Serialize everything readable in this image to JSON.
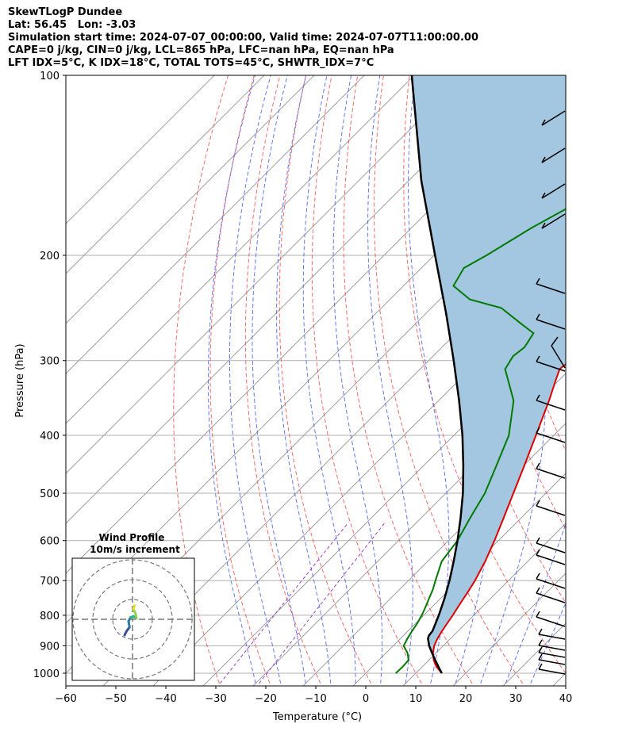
{
  "header": {
    "title": "SkewTLogP Dundee",
    "location": "Lat: 56.45   Lon: -3.03",
    "times": "Simulation start time: 2024-07-07_00:00:00, Valid time: 2024-07-07T11:00:00.00",
    "indices1": "CAPE=0 j/kg, CIN=0 j/kg, LCL=865 hPa, LFC=nan hPa, EQ=nan hPa",
    "indices2": "LFT IDX=5°C, K IDX=18°C, TOTAL TOTS=45°C, SHWTR_IDX=7°C"
  },
  "chart_data": {
    "type": "line",
    "subtype": "skew-T log-P diagram",
    "xlabel": "Temperature (°C)",
    "ylabel": "Pressure (hPa)",
    "xlim": [
      -60,
      40
    ],
    "ylim": [
      1040,
      100
    ],
    "y_scale": "log",
    "x_ticks": [
      "−60",
      "−50",
      "−40",
      "−30",
      "−20",
      "−10",
      "0",
      "10",
      "20",
      "30",
      "40"
    ],
    "x_tick_values": [
      -60,
      -50,
      -40,
      -30,
      -20,
      -10,
      0,
      10,
      20,
      30,
      40
    ],
    "y_ticks": [
      "1000",
      "900",
      "800",
      "700",
      "600",
      "500",
      "400",
      "300",
      "200",
      "100"
    ],
    "y_tick_values": [
      1000,
      900,
      800,
      700,
      600,
      500,
      400,
      300,
      200,
      100
    ],
    "grid": true,
    "colors": {
      "temperature": "#e00000",
      "dewpoint": "#007a00",
      "parcel": "#000000",
      "shading": "#a3c7e0",
      "dry_adiabat": "#f05050",
      "moist_adiabat": "#4a5ef0",
      "isotherm": "#a0a0a0",
      "mixing_ratio": "#9a40c8"
    },
    "series": [
      {
        "key": "temperature",
        "points": [
          [
            1000,
            15.2
          ],
          [
            975,
            12.8
          ],
          [
            950,
            10.9
          ],
          [
            925,
            9.4
          ],
          [
            900,
            8.2
          ],
          [
            875,
            7.4
          ],
          [
            850,
            6.8
          ],
          [
            825,
            6.3
          ],
          [
            800,
            5.8
          ],
          [
            775,
            5.2
          ],
          [
            750,
            4.6
          ],
          [
            725,
            4.0
          ],
          [
            700,
            3.3
          ],
          [
            650,
            1.5
          ],
          [
            600,
            -0.8
          ],
          [
            550,
            -3.5
          ],
          [
            500,
            -6.5
          ],
          [
            450,
            -9.8
          ],
          [
            400,
            -13.6
          ],
          [
            350,
            -17.9
          ],
          [
            325,
            -20.5
          ],
          [
            310,
            -22.1
          ],
          [
            295,
            -21.4
          ],
          [
            285,
            -20.5
          ],
          [
            270,
            -18.0
          ],
          [
            255,
            -13.5
          ],
          [
            245,
            -11.0
          ],
          [
            235,
            -9.0
          ],
          [
            225,
            -7.3
          ],
          [
            210,
            -4.7
          ],
          [
            200,
            -3.0
          ],
          [
            185,
            -1.5
          ],
          [
            170,
            -0.6
          ],
          [
            155,
            0.0
          ],
          [
            140,
            0.8
          ],
          [
            125,
            1.9
          ],
          [
            110,
            3.2
          ],
          [
            100,
            3.8
          ]
        ]
      },
      {
        "key": "dewpoint",
        "points": [
          [
            1000,
            6.0
          ],
          [
            975,
            6.1
          ],
          [
            950,
            5.9
          ],
          [
            925,
            4.3
          ],
          [
            900,
            2.1
          ],
          [
            875,
            1.4
          ],
          [
            850,
            0.8
          ],
          [
            825,
            0.3
          ],
          [
            800,
            -0.4
          ],
          [
            775,
            -1.3
          ],
          [
            750,
            -2.3
          ],
          [
            725,
            -3.3
          ],
          [
            700,
            -4.6
          ],
          [
            650,
            -7.2
          ],
          [
            600,
            -8.2
          ],
          [
            550,
            -10.2
          ],
          [
            500,
            -12.2
          ],
          [
            450,
            -15.4
          ],
          [
            400,
            -19.0
          ],
          [
            350,
            -25.0
          ],
          [
            310,
            -33.0
          ],
          [
            295,
            -34.0
          ],
          [
            285,
            -33.5
          ],
          [
            270,
            -34.5
          ],
          [
            260,
            -39.0
          ],
          [
            245,
            -46.0
          ],
          [
            237,
            -54.0
          ],
          [
            225,
            -60.0
          ],
          [
            210,
            -61.5
          ],
          [
            200,
            -59.5
          ],
          [
            180,
            -56.0
          ],
          [
            160,
            -51.0
          ],
          [
            140,
            -46.0
          ],
          [
            120,
            -40.5
          ],
          [
            100,
            -37.0
          ]
        ]
      },
      {
        "key": "parcel",
        "points": [
          [
            1000,
            15.2
          ],
          [
            975,
            13.2
          ],
          [
            950,
            11.2
          ],
          [
            925,
            9.2
          ],
          [
            900,
            7.2
          ],
          [
            875,
            5.5
          ],
          [
            865,
            5.1
          ],
          [
            850,
            4.9
          ],
          [
            800,
            3.0
          ],
          [
            750,
            0.8
          ],
          [
            700,
            -1.8
          ],
          [
            650,
            -4.8
          ],
          [
            600,
            -8.2
          ],
          [
            550,
            -12.1
          ],
          [
            500,
            -16.6
          ],
          [
            450,
            -22.0
          ],
          [
            400,
            -28.3
          ],
          [
            350,
            -35.9
          ],
          [
            300,
            -45.0
          ],
          [
            250,
            -56.0
          ],
          [
            200,
            -69.8
          ],
          [
            150,
            -87.5
          ],
          [
            100,
            -110.5
          ]
        ]
      }
    ],
    "inset": {
      "title": "Wind Profile",
      "subtitle": "10m/s increment",
      "type": "hodograph",
      "ring_speeds": [
        10,
        20,
        30
      ],
      "trace_colors": [
        "#3a4a9a",
        "#2c7ca0",
        "#2eb088",
        "#8ed04c",
        "#e8e020"
      ]
    }
  }
}
